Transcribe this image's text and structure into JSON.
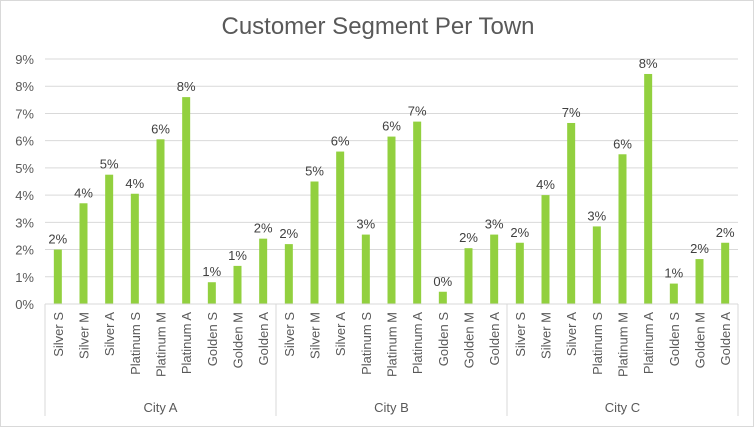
{
  "chart_data": {
    "type": "bar",
    "title": "Customer Segment Per Town",
    "xlabel": "",
    "ylabel": "",
    "ylim": [
      0,
      9
    ],
    "y_unit": "%",
    "y_ticks": [
      "0%",
      "1%",
      "2%",
      "3%",
      "4%",
      "5%",
      "6%",
      "7%",
      "8%",
      "9%"
    ],
    "grid": true,
    "legend": "none",
    "bar_color": "#92d03f",
    "groups": [
      {
        "name": "City A",
        "categories": [
          "Silver S",
          "Silver M",
          "Silver A",
          "Platinum S",
          "Platinum M",
          "Platinum A",
          "Golden S",
          "Golden M",
          "Golden A"
        ],
        "values": [
          2.0,
          3.7,
          4.75,
          4.05,
          6.05,
          7.6,
          0.8,
          1.4,
          2.4
        ],
        "labels": [
          "2%",
          "4%",
          "5%",
          "4%",
          "6%",
          "8%",
          "1%",
          "1%",
          "2%"
        ]
      },
      {
        "name": "City B",
        "categories": [
          "Silver S",
          "Silver M",
          "Silver A",
          "Platinum S",
          "Platinum M",
          "Platinum A",
          "Golden S",
          "Golden M",
          "Golden A"
        ],
        "values": [
          2.2,
          4.5,
          5.6,
          2.55,
          6.15,
          6.7,
          0.45,
          2.05,
          2.55
        ],
        "labels": [
          "2%",
          "5%",
          "6%",
          "3%",
          "6%",
          "7%",
          "0%",
          "2%",
          "3%"
        ]
      },
      {
        "name": "City C",
        "categories": [
          "Silver S",
          "Silver M",
          "Silver A",
          "Platinum S",
          "Platinum M",
          "Platinum A",
          "Golden S",
          "Golden M",
          "Golden A"
        ],
        "values": [
          2.25,
          4.0,
          6.65,
          2.85,
          5.5,
          8.45,
          0.75,
          1.65,
          2.25
        ],
        "labels": [
          "2%",
          "4%",
          "7%",
          "3%",
          "6%",
          "8%",
          "1%",
          "2%",
          "2%"
        ]
      }
    ]
  }
}
